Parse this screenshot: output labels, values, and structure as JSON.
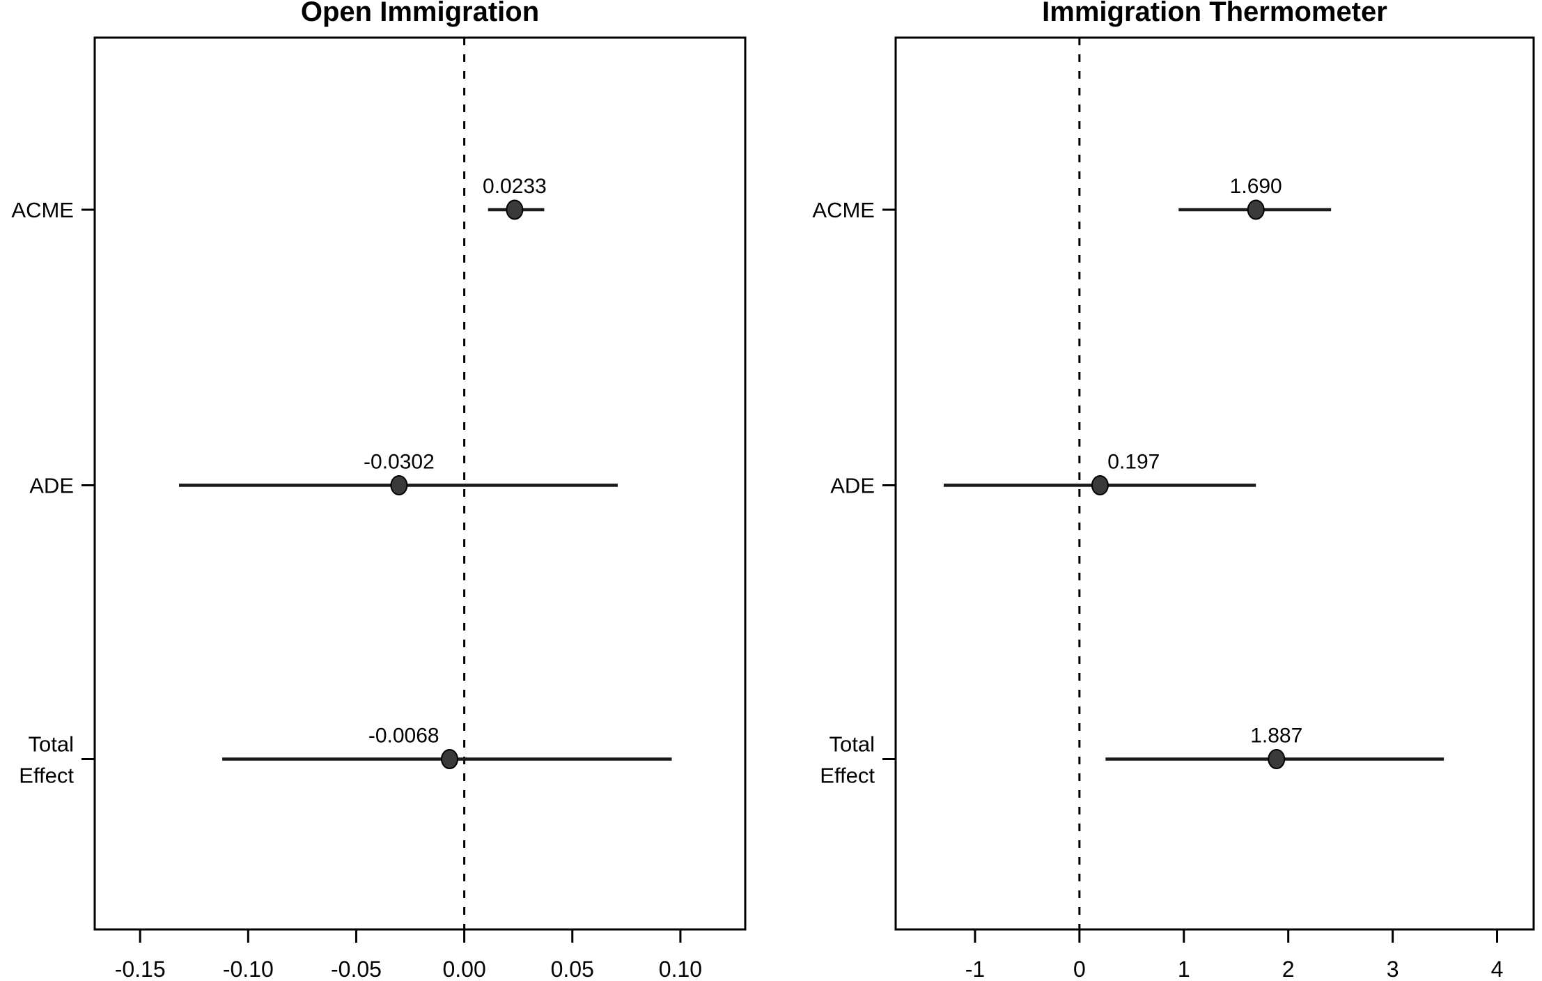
{
  "figure": {
    "background": "#ffffff",
    "description": "Two-panel mediation analysis forest plot with point estimates and confidence intervals"
  },
  "colors": {
    "frame": "#000000",
    "ci_line": "#1a1a1a",
    "point_fill": "#3a3a3a",
    "point_stroke": "#000000",
    "zero_line": "#000000",
    "text": "#000000",
    "background": "#ffffff"
  },
  "chart_data": [
    {
      "type": "scatter",
      "subtype": "dot-and-ci-forest",
      "title": "Open Immigration",
      "orientation": "horizontal-ci",
      "grid": false,
      "legend": null,
      "xlim": [
        -0.171,
        0.13
      ],
      "xticks": [
        -0.15,
        -0.1,
        -0.05,
        0.0,
        0.05,
        0.1
      ],
      "xtick_labels": [
        "-0.15",
        "-0.10",
        "-0.05",
        "0.00",
        "0.05",
        "0.10"
      ],
      "zero_line_x": 0,
      "rows": [
        {
          "label_lines": [
            "ACME"
          ],
          "estimate": 0.0233,
          "estimate_label": "0.0233",
          "ci_low": 0.011,
          "ci_high": 0.037,
          "label_x": null
        },
        {
          "label_lines": [
            "ADE"
          ],
          "estimate": -0.0302,
          "estimate_label": "-0.0302",
          "ci_low": -0.132,
          "ci_high": 0.071,
          "label_x": null
        },
        {
          "label_lines": [
            "Total",
            "Effect"
          ],
          "estimate": -0.0068,
          "estimate_label": "-0.0068",
          "ci_low": -0.112,
          "ci_high": 0.096,
          "label_x": -0.028
        }
      ]
    },
    {
      "type": "scatter",
      "subtype": "dot-and-ci-forest",
      "title": "Immigration Thermometer",
      "orientation": "horizontal-ci",
      "grid": false,
      "legend": null,
      "xlim": [
        -1.76,
        4.35
      ],
      "xticks": [
        -1,
        0,
        1,
        2,
        3,
        4
      ],
      "xtick_labels": [
        "-1",
        "0",
        "1",
        "2",
        "3",
        "4"
      ],
      "zero_line_x": 0,
      "rows": [
        {
          "label_lines": [
            "ACME"
          ],
          "estimate": 1.69,
          "estimate_label": "1.690",
          "ci_low": 0.95,
          "ci_high": 2.41,
          "label_x": null
        },
        {
          "label_lines": [
            "ADE"
          ],
          "estimate": 0.197,
          "estimate_label": "0.197",
          "ci_low": -1.3,
          "ci_high": 1.69,
          "label_x": 0.52
        },
        {
          "label_lines": [
            "Total",
            "Effect"
          ],
          "estimate": 1.887,
          "estimate_label": "1.887",
          "ci_low": 0.25,
          "ci_high": 3.49,
          "label_x": null
        }
      ]
    }
  ]
}
